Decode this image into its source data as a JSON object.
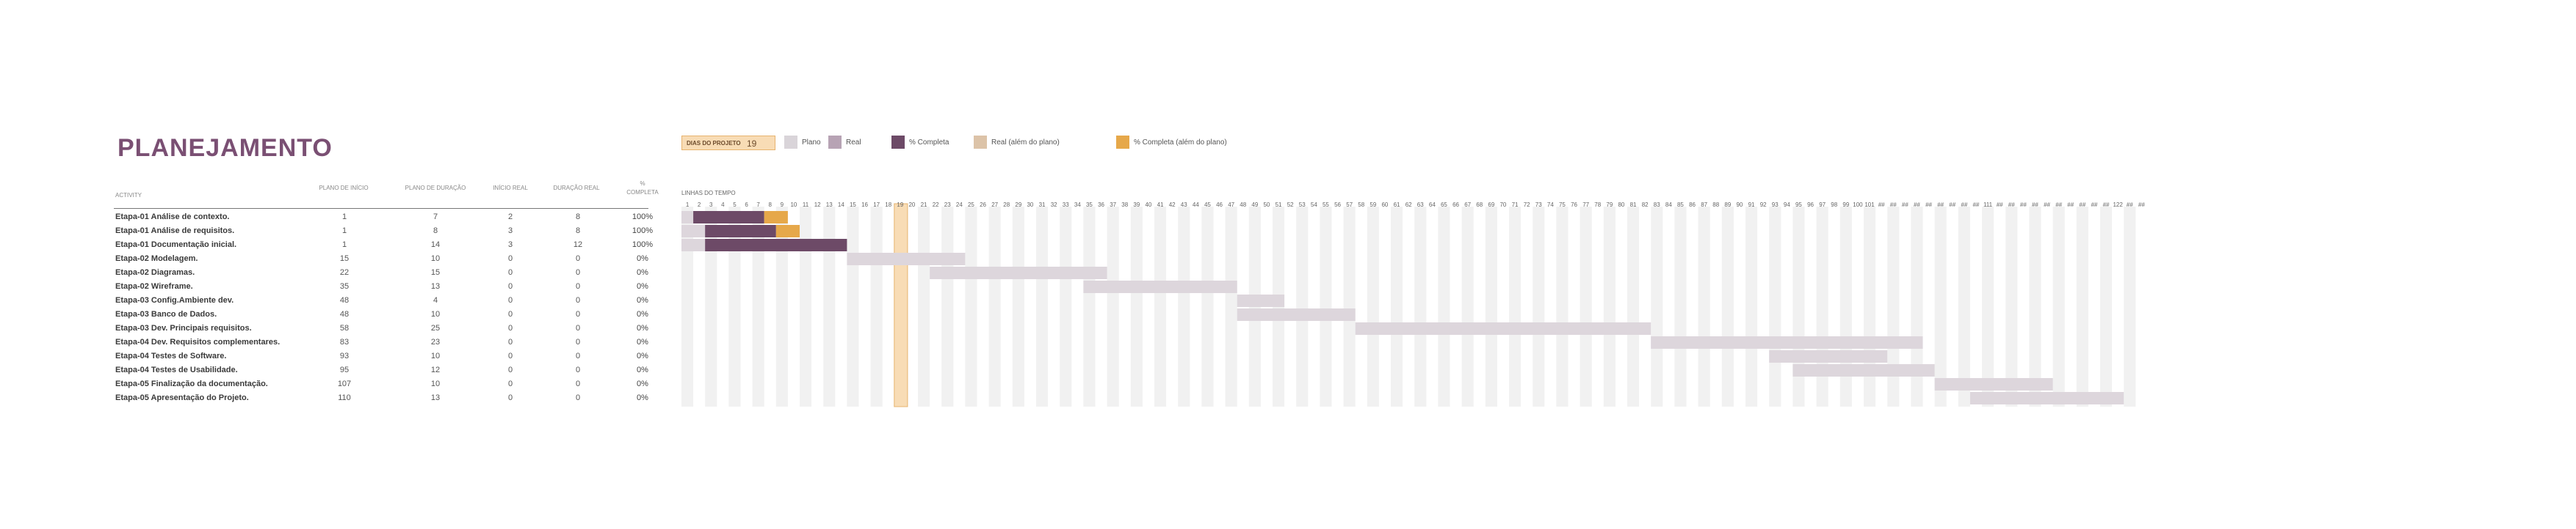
{
  "title": "PLANEJAMENTO",
  "dias_do_projeto": {
    "label": "DIAS DO PROJETO",
    "value": "19"
  },
  "legend": [
    {
      "label": "Plano",
      "color": "#d9d4d9"
    },
    {
      "label": "Real",
      "color": "#b7a3b4"
    },
    {
      "label": "% Completa",
      "color": "#6d4a67"
    },
    {
      "label": "Real (além do plano)",
      "color": "#dcc3a8"
    },
    {
      "label": "% Completa (além do plano)",
      "color": "#e6a84a"
    }
  ],
  "headers": {
    "activity": "ACTIVITY",
    "plano_inicio": "PLANO DE INÍCIO",
    "plano_duracao": "PLANO DE DURAÇÃO",
    "inicio_real": "INÍCIO REAL",
    "duracao_real": "DURAÇÃO REAL",
    "pct_completa_1": "%",
    "pct_completa_2": "COMPLETA",
    "linhas_tempo": "LINHAS DO TEMPO"
  },
  "rows": [
    {
      "activity": "Etapa-01  Análise de contexto.",
      "plan_start": "1",
      "plan_dur": "7",
      "actual_start": "2",
      "actual_dur": "8",
      "pct": "100%"
    },
    {
      "activity": "Etapa-01  Análise de requisitos.",
      "plan_start": "1",
      "plan_dur": "8",
      "actual_start": "3",
      "actual_dur": "8",
      "pct": "100%"
    },
    {
      "activity": "Etapa-01  Documentação inicial.",
      "plan_start": "1",
      "plan_dur": "14",
      "actual_start": "3",
      "actual_dur": "12",
      "pct": "100%"
    },
    {
      "activity": "Etapa-02  Modelagem.",
      "plan_start": "15",
      "plan_dur": "10",
      "actual_start": "0",
      "actual_dur": "0",
      "pct": "0%"
    },
    {
      "activity": "Etapa-02  Diagramas.",
      "plan_start": "22",
      "plan_dur": "15",
      "actual_start": "0",
      "actual_dur": "0",
      "pct": "0%"
    },
    {
      "activity": "Etapa-02  Wireframe.",
      "plan_start": "35",
      "plan_dur": "13",
      "actual_start": "0",
      "actual_dur": "0",
      "pct": "0%"
    },
    {
      "activity": "Etapa-03  Config.Ambiente dev.",
      "plan_start": "48",
      "plan_dur": "4",
      "actual_start": "0",
      "actual_dur": "0",
      "pct": "0%"
    },
    {
      "activity": "Etapa-03 Banco de Dados.",
      "plan_start": "48",
      "plan_dur": "10",
      "actual_start": "0",
      "actual_dur": "0",
      "pct": "0%"
    },
    {
      "activity": "Etapa-03 Dev. Principais requisitos.",
      "plan_start": "58",
      "plan_dur": "25",
      "actual_start": "0",
      "actual_dur": "0",
      "pct": "0%"
    },
    {
      "activity": "Etapa-04 Dev. Requisitos complementares.",
      "plan_start": "83",
      "plan_dur": "23",
      "actual_start": "0",
      "actual_dur": "0",
      "pct": "0%"
    },
    {
      "activity": "Etapa-04 Testes de Software.",
      "plan_start": "93",
      "plan_dur": "10",
      "actual_start": "0",
      "actual_dur": "0",
      "pct": "0%"
    },
    {
      "activity": "Etapa-04 Testes de Usabilidade.",
      "plan_start": "95",
      "plan_dur": "12",
      "actual_start": "0",
      "actual_dur": "0",
      "pct": "0%"
    },
    {
      "activity": "Etapa-05 Finalização da documentação.",
      "plan_start": "107",
      "plan_dur": "10",
      "actual_start": "0",
      "actual_dur": "0",
      "pct": "0%"
    },
    {
      "activity": "Etapa-05 Apresentação do Projeto.",
      "plan_start": "110",
      "plan_dur": "13",
      "actual_start": "0",
      "actual_dur": "0",
      "pct": "0%"
    }
  ],
  "timeline": {
    "day_labels": [
      "1",
      "2",
      "3",
      "4",
      "5",
      "6",
      "7",
      "8",
      "9",
      "10",
      "11",
      "12",
      "13",
      "14",
      "15",
      "16",
      "17",
      "18",
      "19",
      "20",
      "21",
      "22",
      "23",
      "24",
      "25",
      "26",
      "27",
      "28",
      "29",
      "30",
      "31",
      "32",
      "33",
      "34",
      "35",
      "36",
      "37",
      "38",
      "39",
      "40",
      "41",
      "42",
      "43",
      "44",
      "45",
      "46",
      "47",
      "48",
      "49",
      "50",
      "51",
      "52",
      "53",
      "54",
      "55",
      "56",
      "57",
      "58",
      "59",
      "60",
      "61",
      "62",
      "63",
      "64",
      "65",
      "66",
      "67",
      "68",
      "69",
      "70",
      "71",
      "72",
      "73",
      "74",
      "75",
      "76",
      "77",
      "78",
      "79",
      "80",
      "81",
      "82",
      "83",
      "84",
      "85",
      "86",
      "87",
      "88",
      "89",
      "90",
      "91",
      "92",
      "93",
      "94",
      "95",
      "96",
      "97",
      "98",
      "99",
      "100",
      "101",
      "##",
      "##",
      "##",
      "##",
      "##",
      "##",
      "##",
      "##",
      "##",
      "111",
      "##",
      "##",
      "##",
      "##",
      "##",
      "##",
      "##",
      "##",
      "##",
      "##",
      "122",
      "##",
      "##"
    ],
    "current_day": 19
  }
}
